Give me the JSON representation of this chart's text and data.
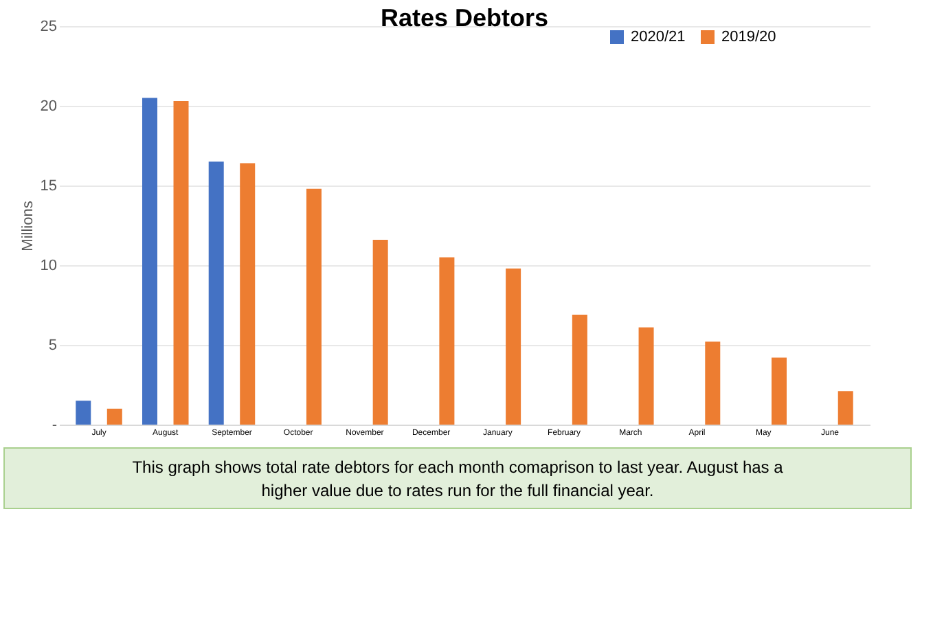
{
  "chart_data": {
    "type": "bar",
    "title": "Rates Debtors",
    "ylabel": "Millions",
    "categories": [
      "July",
      "August",
      "September",
      "October",
      "November",
      "December",
      "January",
      "February",
      "March",
      "April",
      "May",
      "June"
    ],
    "series": [
      {
        "name": "2020/21",
        "color": "#4472c4",
        "values": [
          1.5,
          20.5,
          16.5,
          null,
          null,
          null,
          null,
          null,
          null,
          null,
          null,
          null
        ]
      },
      {
        "name": "2019/20",
        "color": "#ed7d31",
        "values": [
          1.0,
          20.3,
          16.4,
          14.8,
          11.6,
          10.5,
          9.8,
          6.9,
          6.1,
          5.2,
          4.2,
          2.1
        ]
      }
    ],
    "ylim": [
      0,
      25
    ],
    "yticks": [
      {
        "value": 0,
        "label": "-"
      },
      5,
      10,
      15,
      20,
      25
    ],
    "grid": "y",
    "legend": "top right",
    "annotations": [
      "This graph shows total rate debtors for each month comaprison to last year.  August has a higher value due to rates run for the full financial year."
    ]
  }
}
